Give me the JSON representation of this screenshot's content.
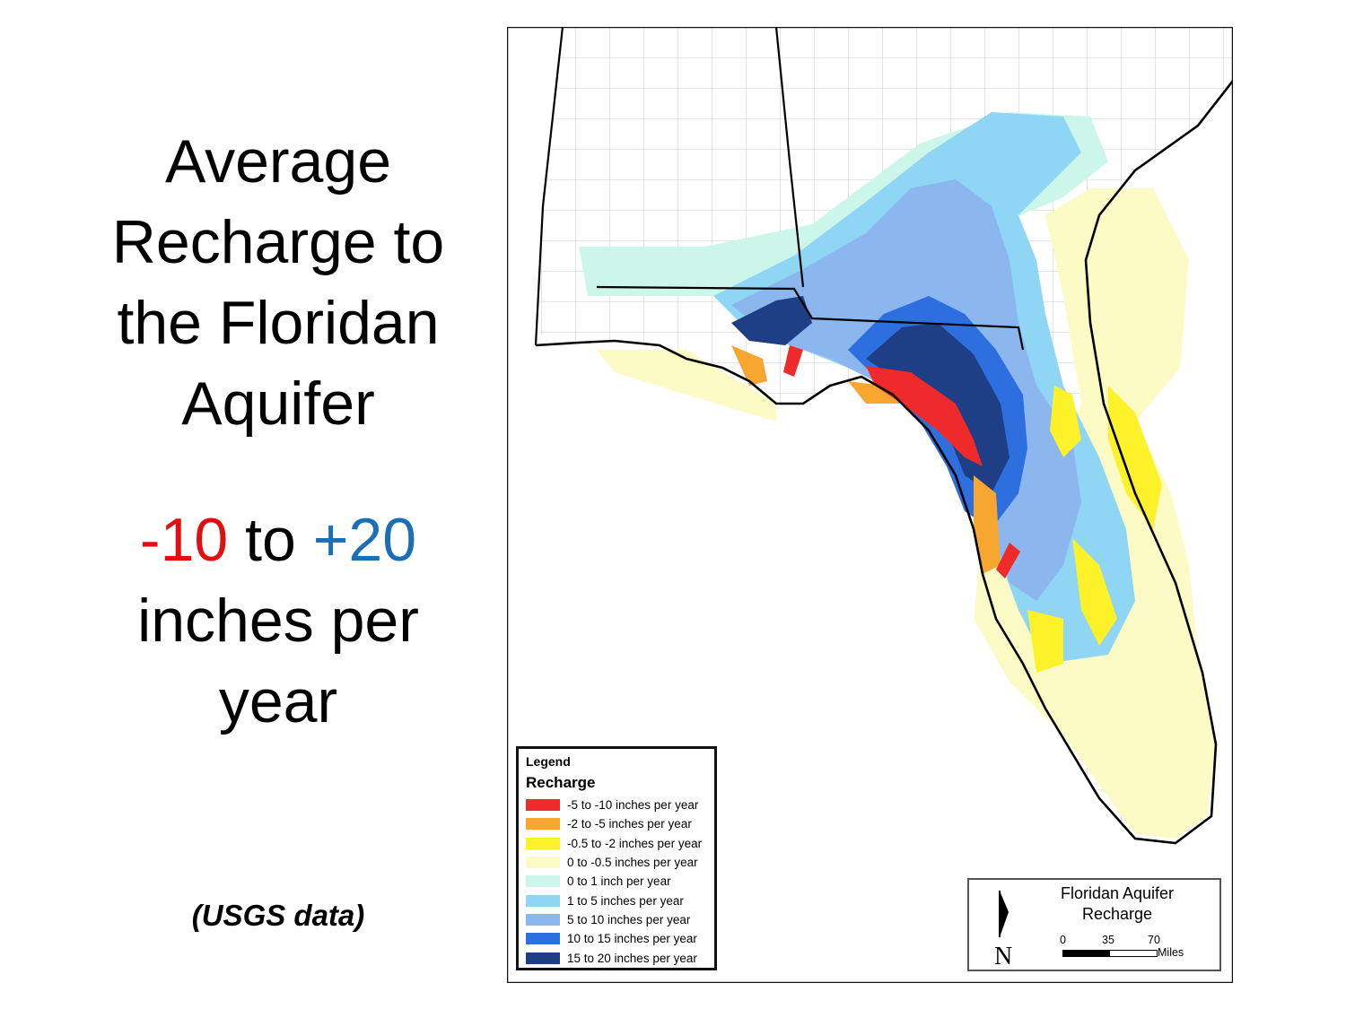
{
  "title": [
    "Average",
    "Recharge to",
    "the Floridan",
    "Aquifer"
  ],
  "range": {
    "neg": "-10",
    "mid": " to ",
    "pos": "+20",
    "line2": "inches per",
    "line3": "year"
  },
  "source": "(USGS data)",
  "map": {
    "title_line1": "Floridan Aquifer",
    "title_line2": "Recharge",
    "north_icon": "north-arrow-icon",
    "scale": {
      "s0": "0",
      "s1": "35",
      "s2": "70",
      "unit": "Miles"
    }
  },
  "legend": {
    "heading": "Legend",
    "subheading": "Recharge",
    "items": [
      {
        "label": "-5 to -10 inches per year",
        "color": "#ee2a2a"
      },
      {
        "label": "-2 to -5 inches per year",
        "color": "#f7a630"
      },
      {
        "label": "-0.5 to -2 inches per year",
        "color": "#fdf22a"
      },
      {
        "label": "0 to -0.5 inches per year",
        "color": "#fdfbc5"
      },
      {
        "label": "0 to 1 inch per year",
        "color": "#cdf6ea"
      },
      {
        "label": "1 to 5 inches per year",
        "color": "#8ed6f4"
      },
      {
        "label": "5 to 10 inches per year",
        "color": "#8cb6ee"
      },
      {
        "label": "10 to 15 inches per year",
        "color": "#2e6fe0"
      },
      {
        "label": "15 to 20 inches per year",
        "color": "#1e3e86"
      }
    ]
  }
}
